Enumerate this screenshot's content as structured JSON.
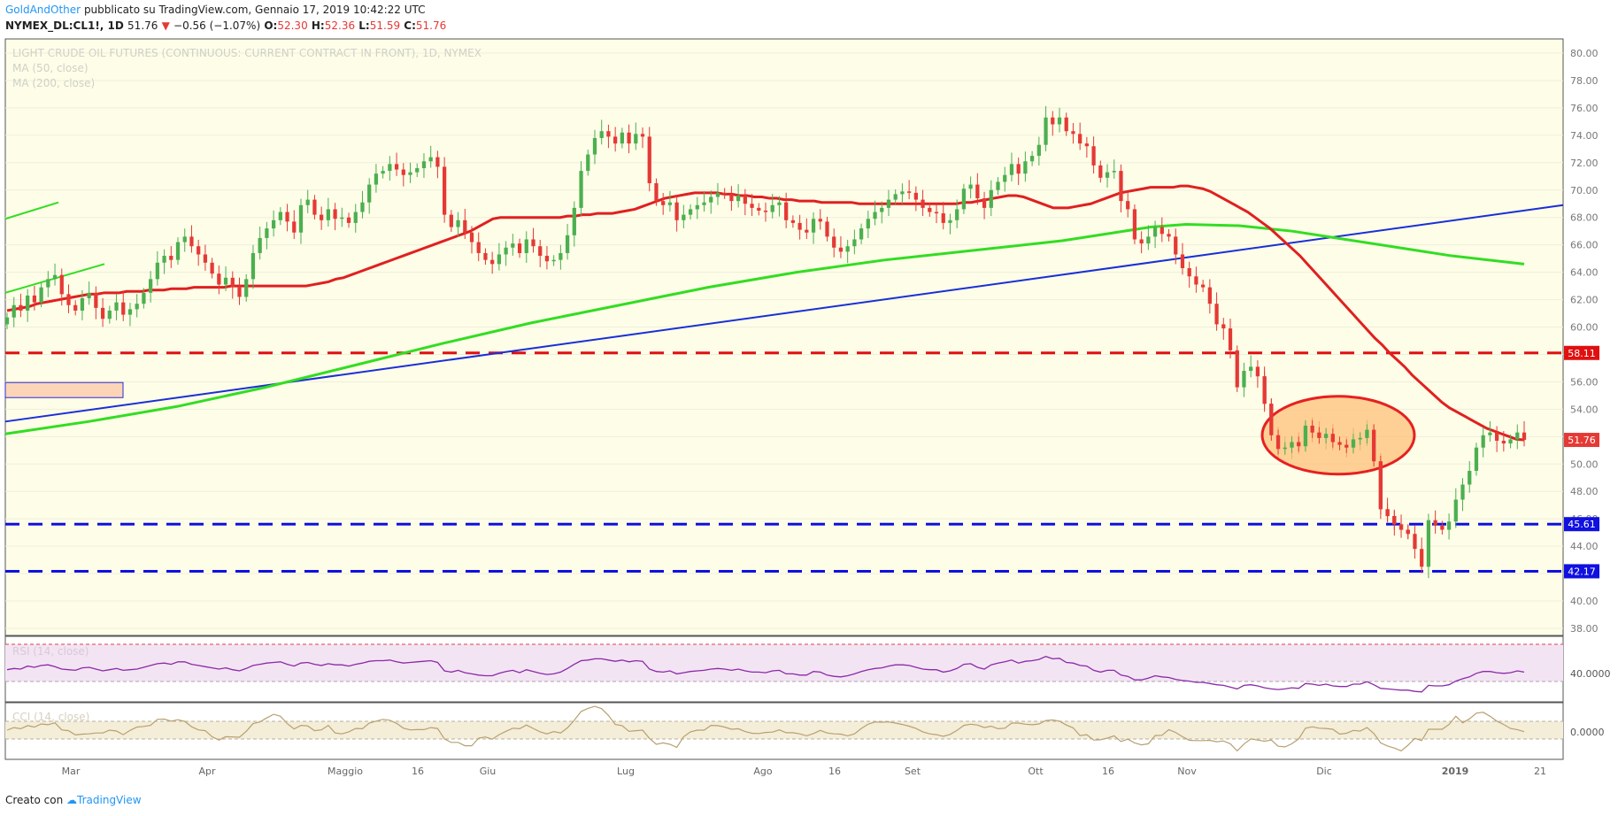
{
  "header": {
    "author": "GoldAndOther",
    "published": "pubblicato su TradingView.com, Gennaio 17, 2019 10:42:22 UTC",
    "symbol": "NYMEX_DL:CL1!, 1D",
    "last": "51.76",
    "change": "−0.56 (−1.07%)",
    "o_label": "O:",
    "o_value": "52.30",
    "h_label": "H:",
    "h_value": "52.36",
    "l_label": "L:",
    "l_value": "51.59",
    "c_label": "C:",
    "c_value": "51.76"
  },
  "footer": {
    "created_with": "Creato con",
    "brand": "TradingView"
  },
  "colors": {
    "background": "#fdfde8",
    "up": "#4caf50",
    "down": "#e53935",
    "ma50": "#e02020",
    "ma200": "#33dd22",
    "trendline": "#1a2fd6",
    "resistance": "#e01010",
    "support": "#1010e0",
    "highlight": "#ffc07a",
    "rsi": "#8a2aa8",
    "cci": "#b8a070"
  },
  "chart_data": {
    "type": "candlestick",
    "title": "LIGHT CRUDE OIL FUTURES (CONTINUOUS: CURRENT CONTRACT IN FRONT), 1D, NYMEX",
    "indicators": [
      "MA (50, close)",
      "MA (200, close)"
    ],
    "y_range": [
      37,
      81
    ],
    "y_ticks": [
      "38.00",
      "40.00",
      "42.00",
      "44.00",
      "46.00",
      "48.00",
      "50.00",
      "52.00",
      "54.00",
      "56.00",
      "58.00",
      "60.00",
      "62.00",
      "64.00",
      "66.00",
      "68.00",
      "70.00",
      "72.00",
      "74.00",
      "76.00",
      "78.00",
      "80.00"
    ],
    "x_labels": [
      "Mar",
      "Apr",
      "Maggio",
      "16",
      "Giu",
      "Lug",
      "Ago",
      "16",
      "Set",
      "Ott",
      "16",
      "Nov",
      "Dic",
      "2019",
      "21"
    ],
    "levels": [
      {
        "name": "resistance",
        "value": 58.11,
        "label": "58.11",
        "style": "red-dashed"
      },
      {
        "name": "support-1",
        "value": 45.61,
        "label": "45.61",
        "style": "blue-dashed"
      },
      {
        "name": "support-2",
        "value": 42.17,
        "label": "42.17",
        "style": "blue-dashed"
      }
    ],
    "last_price_label": "51.76",
    "closes": [
      60.7,
      61.6,
      61.2,
      62.3,
      61.8,
      62.9,
      63.5,
      63.8,
      62.4,
      61.6,
      61.2,
      62.1,
      62.5,
      61.4,
      60.6,
      61.2,
      61.8,
      60.9,
      61.3,
      61.7,
      62.5,
      63.5,
      64.7,
      65.2,
      64.9,
      66.2,
      66.6,
      65.9,
      65.3,
      64.7,
      63.9,
      63.1,
      63.6,
      62.9,
      62.2,
      63.5,
      65.4,
      66.5,
      67.2,
      67.8,
      68.4,
      67.7,
      66.9,
      68.9,
      69.3,
      68.2,
      67.8,
      68.6,
      67.9,
      68.0,
      67.6,
      68.4,
      69.1,
      70.4,
      71.2,
      71.4,
      71.9,
      71.5,
      71.1,
      71.3,
      71.6,
      72.1,
      72.4,
      71.7,
      68.2,
      67.3,
      67.8,
      66.9,
      66.2,
      65.4,
      64.9,
      64.6,
      65.3,
      65.8,
      66.1,
      65.4,
      66.4,
      65.9,
      65.2,
      64.8,
      64.9,
      65.4,
      66.7,
      68.7,
      71.4,
      72.6,
      73.8,
      74.3,
      73.9,
      73.4,
      74.2,
      73.4,
      74.1,
      73.9,
      70.5,
      69.2,
      68.9,
      69.1,
      67.8,
      68.2,
      68.6,
      68.9,
      69.1,
      69.5,
      69.8,
      69.7,
      69.2,
      69.6,
      69.0,
      68.7,
      68.5,
      68.4,
      68.9,
      69.1,
      67.8,
      67.6,
      67.1,
      66.9,
      67.9,
      67.7,
      66.6,
      65.8,
      65.5,
      65.9,
      66.4,
      67.2,
      67.9,
      68.4,
      68.7,
      69.3,
      69.7,
      69.9,
      69.8,
      69.3,
      68.7,
      68.4,
      68.3,
      67.6,
      67.8,
      68.6,
      70.1,
      70.4,
      69.4,
      68.7,
      70.0,
      70.6,
      71.1,
      71.9,
      71.2,
      72.1,
      72.5,
      73.3,
      75.3,
      74.8,
      75.3,
      74.3,
      74.1,
      73.4,
      73.2,
      71.8,
      70.9,
      71.3,
      71.4,
      69.2,
      68.6,
      66.4,
      66.1,
      66.6,
      67.3,
      66.8,
      66.6,
      65.3,
      64.3,
      63.7,
      63.1,
      62.9,
      61.7,
      60.2,
      59.9,
      58.3,
      55.6,
      56.8,
      57.1,
      56.4,
      54.4,
      52.1,
      51.1,
      51.2,
      51.6,
      51.3,
      52.8,
      52.3,
      51.9,
      52.2,
      51.6,
      51.4,
      51.2,
      51.8,
      51.9,
      52.5,
      50.2,
      46.7,
      46.2,
      45.6,
      45.2,
      44.9,
      43.8,
      42.5,
      45.9,
      45.5,
      45.2,
      45.8,
      47.4,
      48.5,
      49.5,
      51.2,
      52.1,
      52.3,
      51.7,
      51.5,
      51.8,
      52.3,
      51.76
    ],
    "ma50": [
      61.2,
      61.3,
      61.4,
      61.5,
      61.7,
      61.8,
      61.9,
      62.0,
      62.1,
      62.2,
      62.3,
      62.4,
      62.4,
      62.5,
      62.5,
      62.5,
      62.6,
      62.6,
      62.6,
      62.7,
      62.7,
      62.7,
      62.8,
      62.8,
      62.8,
      62.9,
      62.9,
      62.9,
      62.9,
      62.9,
      63.0,
      63.0,
      63.0,
      63.0,
      63.0,
      63.0,
      63.0,
      63.0,
      63.0,
      63.0,
      63.0,
      63.1,
      63.2,
      63.3,
      63.5,
      63.6,
      63.8,
      64.0,
      64.2,
      64.4,
      64.6,
      64.8,
      65.0,
      65.2,
      65.4,
      65.6,
      65.8,
      66.0,
      66.2,
      66.4,
      66.6,
      66.8,
      67.0,
      67.3,
      67.6,
      67.9,
      68.0,
      68.0,
      68.0,
      68.0,
      68.0,
      68.0,
      68.0,
      68.0,
      68.0,
      68.1,
      68.1,
      68.2,
      68.2,
      68.3,
      68.3,
      68.3,
      68.4,
      68.5,
      68.6,
      68.8,
      69.0,
      69.2,
      69.4,
      69.5,
      69.6,
      69.7,
      69.8,
      69.8,
      69.8,
      69.8,
      69.7,
      69.7,
      69.6,
      69.6,
      69.5,
      69.5,
      69.4,
      69.4,
      69.3,
      69.3,
      69.2,
      69.2,
      69.2,
      69.1,
      69.1,
      69.1,
      69.1,
      69.1,
      69.0,
      69.0,
      69.0,
      69.0,
      69.0,
      69.0,
      69.0,
      69.0,
      69.0,
      69.0,
      69.0,
      69.0,
      69.0,
      69.0,
      69.1,
      69.1,
      69.2,
      69.3,
      69.4,
      69.5,
      69.6,
      69.6,
      69.5,
      69.3,
      69.1,
      68.9,
      68.7,
      68.7,
      68.7,
      68.8,
      68.9,
      69.0,
      69.2,
      69.4,
      69.6,
      69.8,
      69.9,
      70.0,
      70.1,
      70.2,
      70.2,
      70.2,
      70.2,
      70.3,
      70.3,
      70.2,
      70.1,
      69.9,
      69.6,
      69.3,
      69.0,
      68.7,
      68.4,
      68.0,
      67.6,
      67.2,
      66.7,
      66.2,
      65.7,
      65.2,
      64.6,
      64.0,
      63.4,
      62.8,
      62.2,
      61.6,
      61.0,
      60.4,
      59.8,
      59.2,
      58.7,
      58.1,
      57.6,
      57.1,
      56.5,
      56.0,
      55.5,
      55.0,
      54.5,
      54.1,
      53.8,
      53.5,
      53.2,
      52.9,
      52.6,
      52.4,
      52.2,
      52.0,
      51.8,
      51.76
    ]
  },
  "rsi": {
    "label": "RSI (14, close)",
    "tick": "40.0000",
    "values": [
      49,
      51,
      50,
      55,
      53,
      56,
      57,
      54,
      50,
      49,
      48,
      52,
      53,
      50,
      47,
      49,
      51,
      48,
      49,
      50,
      53,
      56,
      59,
      60,
      58,
      62,
      62,
      58,
      56,
      54,
      52,
      50,
      52,
      49,
      47,
      51,
      56,
      58,
      60,
      61,
      62,
      58,
      55,
      60,
      61,
      58,
      56,
      59,
      57,
      57,
      55,
      58,
      60,
      63,
      64,
      64,
      65,
      62,
      60,
      61,
      62,
      63,
      64,
      61,
      47,
      45,
      48,
      44,
      42,
      40,
      39,
      39,
      43,
      46,
      48,
      44,
      49,
      46,
      43,
      41,
      42,
      45,
      51,
      58,
      64,
      65,
      67,
      67,
      65,
      63,
      65,
      62,
      64,
      63,
      50,
      46,
      45,
      47,
      42,
      44,
      46,
      47,
      48,
      50,
      51,
      50,
      48,
      50,
      47,
      45,
      45,
      44,
      47,
      48,
      42,
      42,
      40,
      40,
      46,
      45,
      40,
      38,
      37,
      39,
      42,
      46,
      49,
      51,
      52,
      55,
      57,
      57,
      56,
      53,
      50,
      49,
      49,
      45,
      47,
      51,
      58,
      59,
      53,
      50,
      57,
      60,
      62,
      65,
      60,
      63,
      64,
      66,
      71,
      67,
      68,
      61,
      60,
      56,
      55,
      48,
      45,
      48,
      48,
      40,
      38,
      32,
      32,
      35,
      39,
      37,
      36,
      33,
      31,
      30,
      28,
      28,
      26,
      24,
      23,
      20,
      17,
      23,
      24,
      22,
      19,
      17,
      16,
      17,
      19,
      18,
      26,
      25,
      23,
      25,
      22,
      21,
      21,
      25,
      25,
      29,
      24,
      18,
      17,
      16,
      15,
      15,
      13,
      12,
      23,
      22,
      22,
      24,
      30,
      34,
      37,
      43,
      46,
      46,
      44,
      43,
      44,
      47,
      45
    ]
  },
  "cci": {
    "label": "CCI (14, close)",
    "tick": "0.0000"
  }
}
